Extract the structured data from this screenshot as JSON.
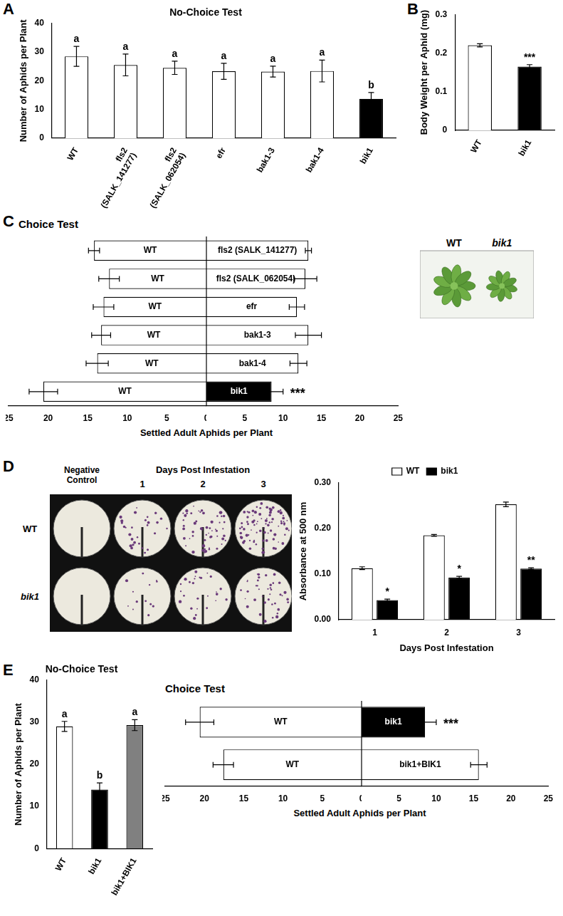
{
  "chart_data": [
    {
      "panel": "A",
      "type": "bar",
      "title": "No-Choice Test",
      "y_label": "Number of Aphids per Plant",
      "categories": [
        "WT",
        "fls2 (SALK_141277)",
        "fls2 (SALK_062054)",
        "efr",
        "bak1-3",
        "bak1-4",
        "bik1"
      ],
      "values": [
        28.5,
        25.5,
        24.5,
        23.3,
        23.2,
        23.4,
        13.7
      ],
      "errors": [
        3.5,
        3.8,
        2.3,
        2.8,
        1.9,
        3.8,
        2.2
      ],
      "annotations": [
        "a",
        "a",
        "a",
        "a",
        "a",
        "a",
        "b"
      ],
      "colors": [
        "#ffffff",
        "#ffffff",
        "#ffffff",
        "#ffffff",
        "#ffffff",
        "#ffffff",
        "#000000"
      ],
      "ylim": [
        0,
        40
      ],
      "yticks": [
        0,
        10,
        20,
        30,
        40
      ],
      "grid": false
    },
    {
      "panel": "B",
      "type": "bar",
      "y_label": "Body Weight per Aphid (mg)",
      "categories": [
        "WT",
        "bik1"
      ],
      "values": [
        0.22,
        0.165
      ],
      "errors": [
        0.004,
        0.005
      ],
      "annotations": [
        null,
        "***"
      ],
      "colors": [
        "#ffffff",
        "#000000"
      ],
      "ylim": [
        0,
        0.3
      ],
      "yticks": [
        0,
        0.1,
        0.2,
        0.3
      ],
      "grid": false
    },
    {
      "panel": "C",
      "type": "bar",
      "orientation": "horizontal",
      "title": "Choice Test",
      "x_label": "Settled Adult Aphids per Plant",
      "categories": [
        "fls2 (SALK_141277)",
        "fls2 (SALK_062054)",
        "efr",
        "bak1-3",
        "bak1-4",
        "bik1"
      ],
      "series": [
        {
          "name": "WT",
          "values": [
            14.2,
            12.3,
            13.0,
            13.3,
            13.8,
            20.6
          ],
          "errors": [
            0.7,
            1.3,
            1.3,
            1.2,
            1.4,
            1.8
          ],
          "colors": [
            "#ffffff",
            "#ffffff",
            "#ffffff",
            "#ffffff",
            "#ffffff",
            "#ffffff"
          ]
        },
        {
          "values": [
            13.3,
            12.9,
            11.8,
            13.3,
            12.0,
            8.5
          ],
          "errors": [
            0.4,
            1.5,
            1.0,
            1.7,
            1.1,
            1.5
          ],
          "colors": [
            "#ffffff",
            "#ffffff",
            "#ffffff",
            "#ffffff",
            "#ffffff",
            "#000000"
          ]
        }
      ],
      "annotations": [
        null,
        null,
        null,
        null,
        null,
        "***"
      ],
      "image_labels": [
        "WT",
        "bik1"
      ],
      "xlim": [
        0,
        25
      ],
      "xticks": [
        0,
        5,
        10,
        15,
        20,
        25
      ],
      "grid": false
    },
    {
      "panel": "D",
      "type": "bar",
      "categories": [
        "1",
        "2",
        "3"
      ],
      "x_label": "Days Post Infestation",
      "y_label": "Absorbance at 500 nm",
      "series": [
        {
          "name": "WT",
          "color": "#ffffff",
          "values": [
            0.113,
            0.185,
            0.253
          ],
          "errors": [
            0.003,
            0.002,
            0.005
          ]
        },
        {
          "name": "bik1",
          "color": "#000000",
          "values": [
            0.043,
            0.092,
            0.112
          ],
          "errors": [
            0.002,
            0.003,
            0.002
          ],
          "annotations": [
            "*",
            "*",
            "**"
          ]
        }
      ],
      "legend": "top",
      "ylim": [
        0,
        0.3
      ],
      "yticks": [
        {
          "value": 0,
          "label": "0.00"
        },
        {
          "value": 0.1,
          "label": "0.10"
        },
        {
          "value": 0.2,
          "label": "0.20"
        },
        {
          "value": 0.3,
          "label": "0.30"
        }
      ],
      "grid": false,
      "image": {
        "row_labels": [
          "WT",
          "bik1"
        ],
        "control_label": "Negative Control",
        "group_label": "Days Post Infestation",
        "columns": [
          "1",
          "2",
          "3"
        ]
      }
    },
    {
      "panel": "E",
      "type": "bar",
      "title": "No-Choice Test",
      "y_label": "Number of Aphids per Plant",
      "categories": [
        "WT",
        "bik1",
        "bik1+BIK1"
      ],
      "values": [
        29,
        14,
        29.3
      ],
      "errors": [
        1.2,
        1.6,
        1.3
      ],
      "annotations": [
        "a",
        "b",
        "a"
      ],
      "colors": [
        "#ffffff",
        "#000000",
        "#808080"
      ],
      "ylim": [
        0,
        40
      ],
      "yticks": [
        0,
        10,
        20,
        30,
        40
      ],
      "grid": false
    },
    {
      "type": "bar",
      "orientation": "horizontal",
      "title": "Choice Test",
      "x_label": "Settled Adult Aphids per Plant",
      "categories": [
        "bik1",
        "bik1+BIK1"
      ],
      "series": [
        {
          "name": "WT",
          "values": [
            20.6,
            17.6
          ],
          "errors": [
            1.8,
            1.3
          ],
          "colors": [
            "#ffffff",
            "#ffffff"
          ]
        },
        {
          "values": [
            8.5,
            15.7
          ],
          "errors": [
            1.5,
            1.1
          ],
          "colors": [
            "#000000",
            "#ffffff"
          ]
        }
      ],
      "annotations": [
        "***",
        null
      ],
      "xlim": [
        0,
        25
      ],
      "xticks": [
        0,
        5,
        10,
        15,
        20,
        25
      ],
      "grid": false
    }
  ]
}
